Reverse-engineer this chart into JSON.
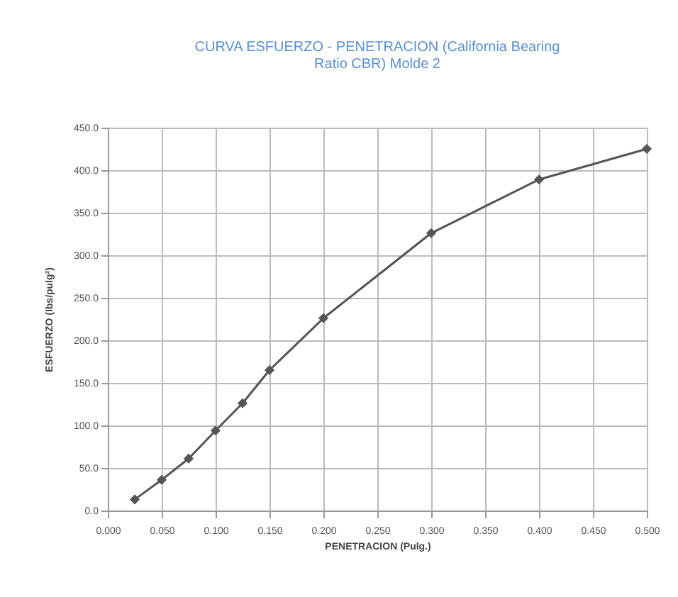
{
  "chart_data": {
    "type": "line",
    "title": "CURVA ESFUERZO - PENETRACION (California Bearing Ratio CBR) Molde 2",
    "xlabel": "PENETRACION (Pulg.)",
    "ylabel": "ESFUERZO (lbs/pulg²)",
    "x": [
      0.025,
      0.05,
      0.075,
      0.1,
      0.125,
      0.15,
      0.2,
      0.3,
      0.4,
      0.5
    ],
    "series": [
      {
        "color": "#555555",
        "values": [
          13,
          36,
          61,
          94,
          126,
          165,
          226,
          326,
          389,
          425
        ]
      }
    ],
    "xlim": [
      0,
      0.5
    ],
    "xticks": [
      {
        "value": 0,
        "label": "0.000"
      },
      {
        "value": 0.05,
        "label": "0.050"
      },
      {
        "value": 0.1,
        "label": "0.100"
      },
      {
        "value": 0.15,
        "label": "0.150"
      },
      {
        "value": 0.2,
        "label": "0.200"
      },
      {
        "value": 0.25,
        "label": "0.250"
      },
      {
        "value": 0.3,
        "label": "0.300"
      },
      {
        "value": 0.35,
        "label": "0.350"
      },
      {
        "value": 0.4,
        "label": "0.400"
      },
      {
        "value": 0.45,
        "label": "0.450"
      },
      {
        "value": 0.5,
        "label": "0.500"
      }
    ],
    "ylim": [
      0,
      450
    ],
    "yticks": [
      {
        "value": 0,
        "label": "0.0"
      },
      {
        "value": 50,
        "label": "50.0"
      },
      {
        "value": 100,
        "label": "100.0"
      },
      {
        "value": 150,
        "label": "150.0"
      },
      {
        "value": 200,
        "label": "200.0"
      },
      {
        "value": 250,
        "label": "250.0"
      },
      {
        "value": 300,
        "label": "300.0"
      },
      {
        "value": 350,
        "label": "350.0"
      },
      {
        "value": 400,
        "label": "400.0"
      },
      {
        "value": 450,
        "label": "450.0"
      }
    ],
    "grid": true,
    "marker": "diamond",
    "line_style": "solid"
  }
}
